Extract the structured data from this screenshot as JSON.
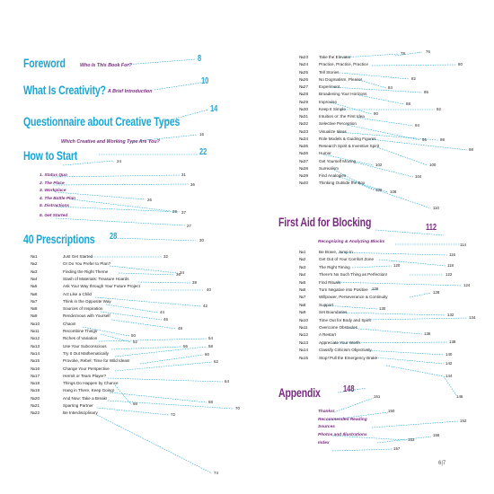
{
  "foreword": {
    "title": "Foreword",
    "sub": "Who Is This Book For?",
    "page": "8"
  },
  "creativity": {
    "title": "What Is Creativity?",
    "sub": "A Brief Introduction",
    "page": "10"
  },
  "questionnaire": {
    "title": "Questionnaire about Creative Types",
    "page": "14",
    "sub": "Which Creative and Working Type Are You?",
    "sub_page": "16"
  },
  "howto": {
    "title": "How to Start",
    "page": "22",
    "items": [
      {
        "label": "1. Status Quo",
        "page": "31"
      },
      {
        "label": "2. The Place",
        "page": "36"
      },
      {
        "label": "3. Workplace",
        "page": "26"
      },
      {
        "label": "4. The Battle Plan",
        "page": "28"
      },
      {
        "label": "5. Distractions",
        "page": "37"
      },
      {
        "label": "6. Get Started",
        "page": "27"
      }
    ],
    "extra_page": "24"
  },
  "prescriptions": {
    "title": "40 Prescriptions",
    "page": "28",
    "first_page": "30",
    "items": [
      {
        "n": "№1",
        "label": "Just Get Started",
        "page": "32"
      },
      {
        "n": "№2",
        "label": "Or Do You Prefer to Plan?",
        "page": "34"
      },
      {
        "n": "№3",
        "label": "Finding the Right Theme",
        "page": "36"
      },
      {
        "n": "№4",
        "label": "Stash of Materials: Treasure Hoards",
        "page": "38"
      },
      {
        "n": "№5",
        "label": "Ask Your Way through Your Future Project",
        "page": "40"
      },
      {
        "n": "№6",
        "label": "Act Like a Child",
        "page": "42"
      },
      {
        "n": "№7",
        "label": "Think in the Opposite Way",
        "page": "44"
      },
      {
        "n": "№8",
        "label": "Sources of Inspiration",
        "page": "46"
      },
      {
        "n": "№9",
        "label": "Rendezvous with Yourself",
        "page": "48"
      },
      {
        "n": "№10",
        "label": "Chaos!",
        "page": "50"
      },
      {
        "n": "№11",
        "label": "Recombine Things",
        "page": "52"
      },
      {
        "n": "№12",
        "label": "Riches of Variation",
        "page": "54"
      },
      {
        "n": "№13",
        "label": "Use Your Subconscious",
        "page": "56"
      },
      {
        "n": "№14",
        "label": "Try It Out Mathematically",
        "page": "58"
      },
      {
        "n": "№15",
        "label": "Provoke, Rebel: Time for Wild Ideas!",
        "page": "60"
      },
      {
        "n": "№16",
        "label": "Change Your Perspective",
        "page": "62"
      },
      {
        "n": "№17",
        "label": "Hermit or Team Player?",
        "page": "64"
      },
      {
        "n": "№18",
        "label": "Things Do Happen by Chance",
        "page": "66"
      },
      {
        "n": "№19",
        "label": "Hang in There, Keep Going!",
        "page": "68"
      },
      {
        "n": "№20",
        "label": "And Now: Take a Break!",
        "page": "70"
      },
      {
        "n": "№21",
        "label": "Sparring Partner",
        "page": "72"
      },
      {
        "n": "№22",
        "label": "Be Interdisciplinary",
        "page": "74"
      },
      {
        "n": "№23",
        "label": "Take the Elevator",
        "page": "76"
      },
      {
        "n": "№24",
        "label": "Practice, Practice, Practice",
        "page": "80"
      },
      {
        "n": "№25",
        "label": "Tell Stories",
        "page": "82"
      },
      {
        "n": "№26",
        "label": "No Dogmatism, Please!",
        "page": "84"
      },
      {
        "n": "№27",
        "label": "Experiment",
        "page": "86"
      },
      {
        "n": "№28",
        "label": "Broadening Your Horizons",
        "page": "88"
      },
      {
        "n": "№29",
        "label": "Improvise",
        "page": "90"
      },
      {
        "n": "№30",
        "label": "Keep It Simple",
        "page": "92"
      },
      {
        "n": "№31",
        "label": "Intuition or: the First Idea",
        "page": "94"
      },
      {
        "n": "№32",
        "label": "Selective Perception",
        "page": "96"
      },
      {
        "n": "№33",
        "label": "Visualize Ideas",
        "page": "98"
      },
      {
        "n": "№34",
        "label": "Role Models & Guiding Figures",
        "page": "98"
      },
      {
        "n": "№35",
        "label": "Research Spirit & Inventive Spirit",
        "page": "100"
      },
      {
        "n": "№36",
        "label": "Humor",
        "page": "102"
      },
      {
        "n": "№37",
        "label": "Get Yourself Moving",
        "page": "104"
      },
      {
        "n": "№38",
        "label": "Surrealism",
        "page": "106"
      },
      {
        "n": "№39",
        "label": "Find Analogies",
        "page": "108"
      },
      {
        "n": "№40",
        "label": "Thinking Outside the Box",
        "page": "110"
      }
    ],
    "extra_page": "78"
  },
  "firstaid": {
    "title": "First Aid for Blocking",
    "page": "112",
    "sub": "Recognizing & Analyzing Blocks",
    "sub_page": "114",
    "items": [
      {
        "n": "№1",
        "label": "Be Brave, Jump In",
        "page": "116"
      },
      {
        "n": "№2",
        "label": "Get Out of Your Comfort Zone",
        "page": "118"
      },
      {
        "n": "№3",
        "label": "The Right Timing",
        "page": "120"
      },
      {
        "n": "№4",
        "label": "There's No Such Thing as Perfection!",
        "page": "122"
      },
      {
        "n": "№5",
        "label": "Find Rituals",
        "page": "124"
      },
      {
        "n": "№6",
        "label": "Turn Negative into Positive",
        "page": "126"
      },
      {
        "n": "№7",
        "label": "Willpower, Perseverance & Continuity",
        "page": "128"
      },
      {
        "n": "№8",
        "label": "Support",
        "page": "130"
      },
      {
        "n": "№9",
        "label": "Set Boundaries",
        "page": "132"
      },
      {
        "n": "№10",
        "label": "Time Out for Body and Spirit",
        "page": "134"
      },
      {
        "n": "№11",
        "label": "Overcome Obstacles",
        "page": "136"
      },
      {
        "n": "№12",
        "label": "A Restart",
        "page": "138"
      },
      {
        "n": "№13",
        "label": "Appreciate Your Worth",
        "page": "140"
      },
      {
        "n": "№14",
        "label": "Classify Criticism Objectively",
        "page": "142"
      },
      {
        "n": "№15",
        "label": "Stop! Pull the Emergency Brake",
        "page": "144"
      }
    ],
    "extra_page": "146"
  },
  "appendix": {
    "title": "Appendix",
    "page": "148",
    "items": [
      {
        "label": "Thanks!",
        "page": "150"
      },
      {
        "label": "Recommended Reading",
        "page": "152"
      },
      {
        "label": "Sources",
        "page": "153"
      },
      {
        "label": "Photos and Illustrations",
        "page": "156"
      },
      {
        "label": "Index",
        "page": "157"
      }
    ],
    "extra_page": "151"
  },
  "page_number": "6|7",
  "colors": {
    "cyan": "#1aa6d4",
    "magenta": "#7a2a82",
    "text": "#222222"
  }
}
